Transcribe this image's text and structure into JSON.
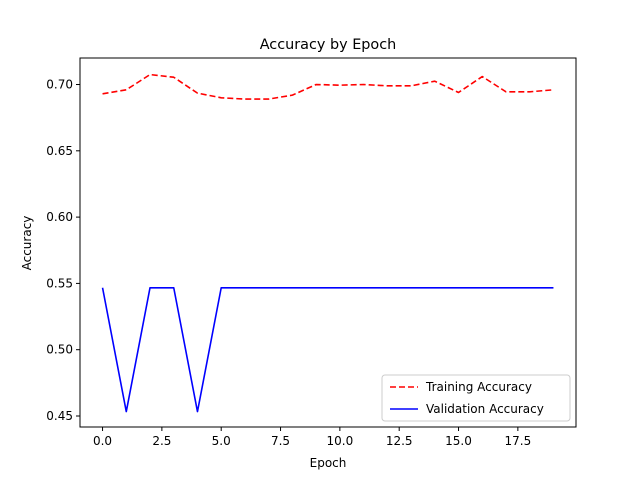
{
  "chart_data": {
    "type": "line",
    "title": "Accuracy by Epoch",
    "xlabel": "Epoch",
    "ylabel": "Accuracy",
    "xlim": [
      -0.95,
      19.95
    ],
    "ylim": [
      0.4417,
      0.72
    ],
    "xticks": [
      0,
      2.5,
      5,
      7.5,
      10,
      12.5,
      15,
      17.5
    ],
    "xtick_labels": [
      "0.0",
      "2.5",
      "5.0",
      "7.5",
      "10.0",
      "12.5",
      "15.0",
      "17.5"
    ],
    "yticks": [
      0.45,
      0.5,
      0.55,
      0.6,
      0.65,
      0.7
    ],
    "ytick_labels": [
      "0.45",
      "0.50",
      "0.55",
      "0.60",
      "0.65",
      "0.70"
    ],
    "grid": false,
    "legend_position": "lower-right",
    "x": [
      0,
      1,
      2,
      3,
      4,
      5,
      6,
      7,
      8,
      9,
      10,
      11,
      12,
      13,
      14,
      15,
      16,
      17,
      18,
      19
    ],
    "series": [
      {
        "name": "Training Accuracy",
        "color": "#ff0000",
        "style": "dashed",
        "values": [
          0.693,
          0.696,
          0.7075,
          0.7055,
          0.6935,
          0.69,
          0.689,
          0.689,
          0.692,
          0.7,
          0.6995,
          0.7,
          0.699,
          0.699,
          0.7025,
          0.694,
          0.706,
          0.6945,
          0.6945,
          0.696
        ]
      },
      {
        "name": "Validation Accuracy",
        "color": "#0000ff",
        "style": "solid",
        "values": [
          0.5467,
          0.4533,
          0.5467,
          0.5467,
          0.4533,
          0.5467,
          0.5467,
          0.5467,
          0.5467,
          0.5467,
          0.5467,
          0.5467,
          0.5467,
          0.5467,
          0.5467,
          0.5467,
          0.5467,
          0.5467,
          0.5467,
          0.5467
        ]
      }
    ]
  }
}
